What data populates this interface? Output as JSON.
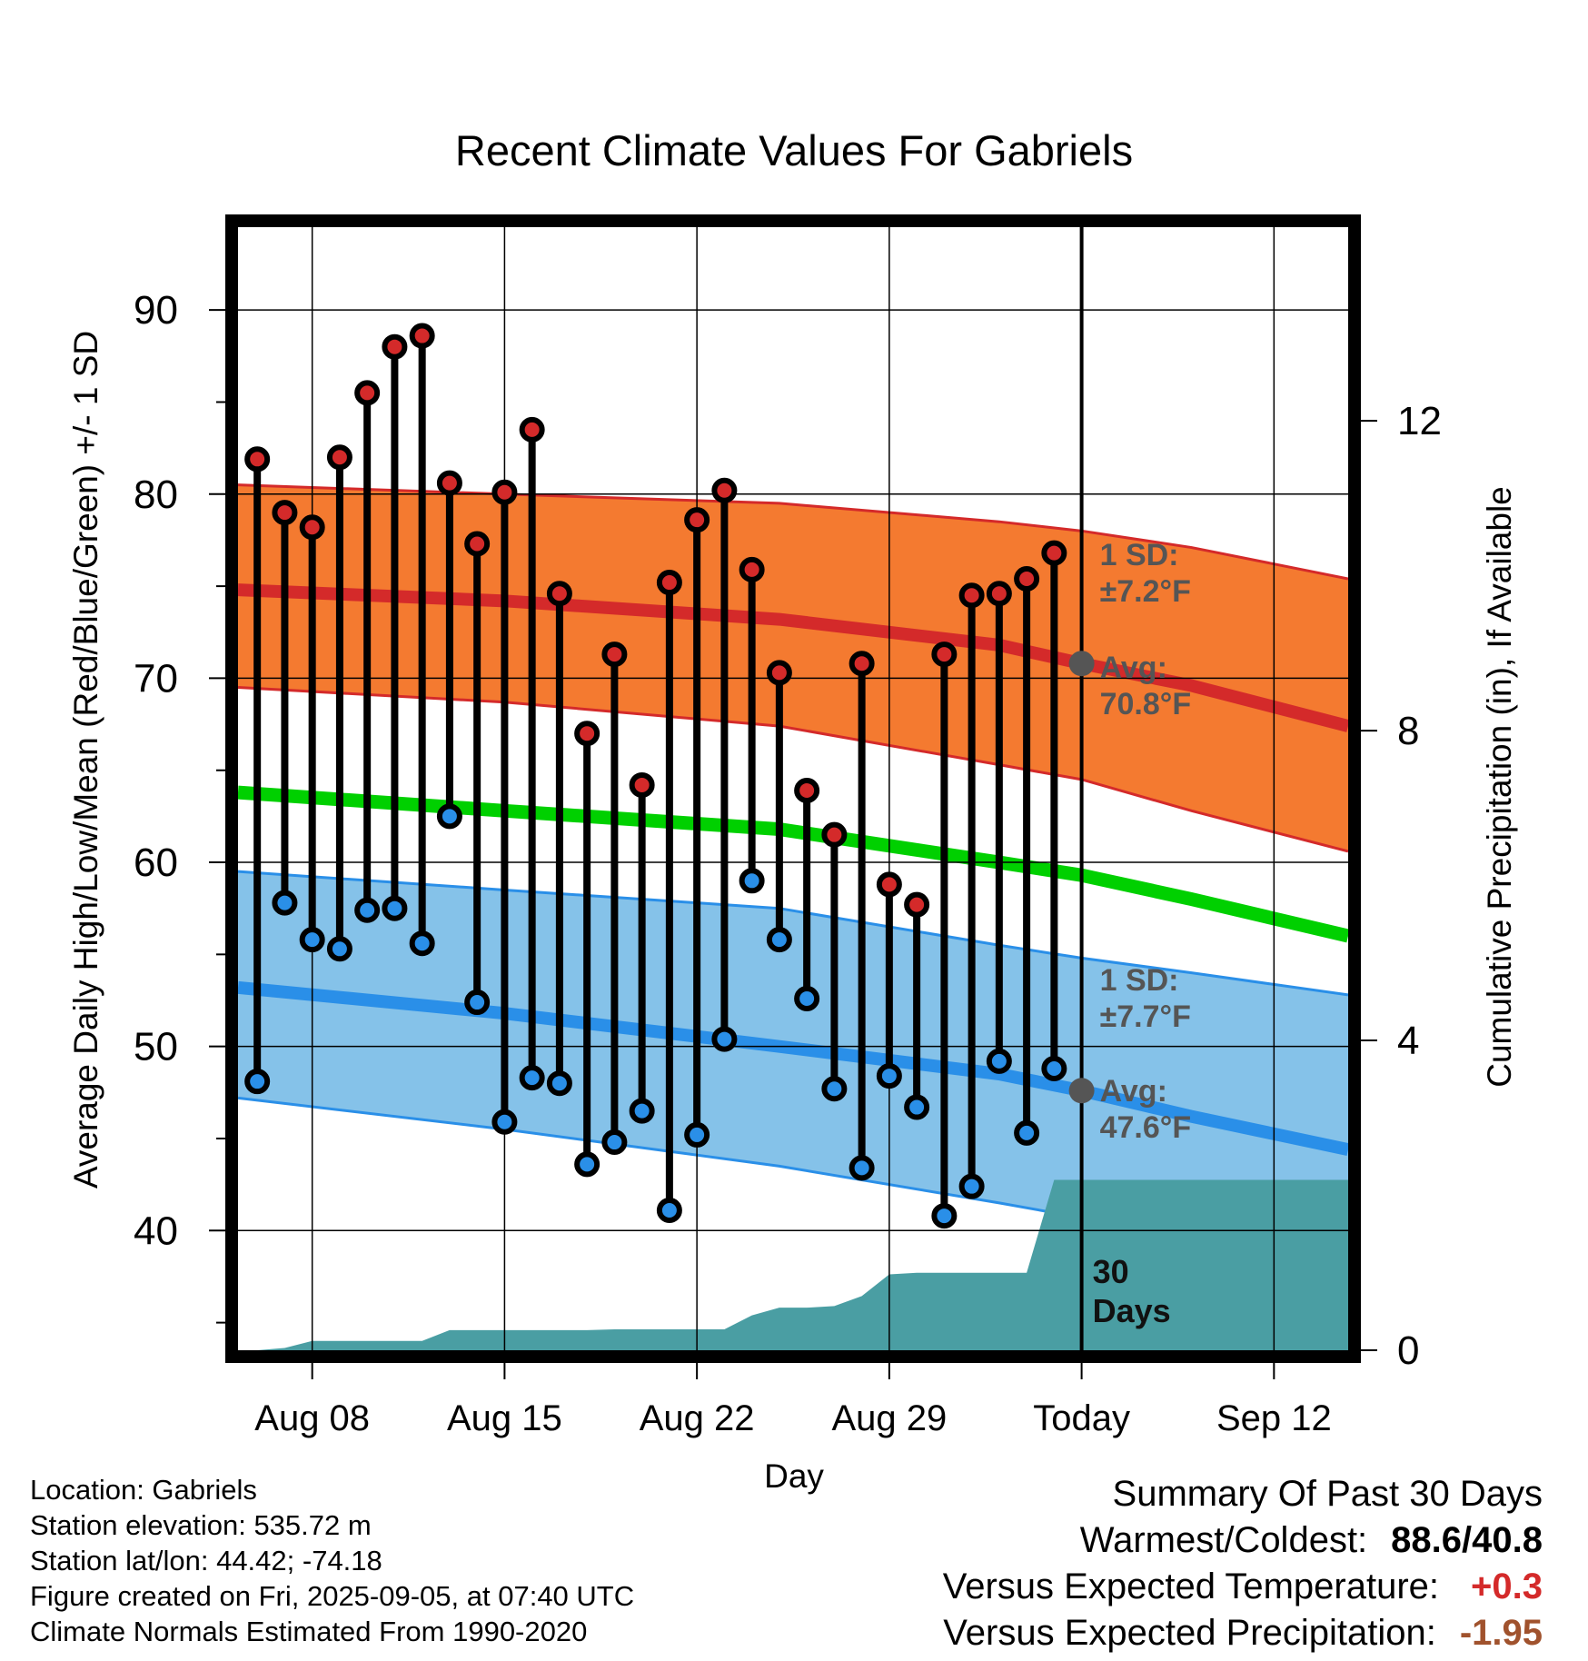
{
  "chart_data": {
    "type": "line",
    "title": "Recent Climate Values For Gabriels",
    "xlabel": "Day",
    "ylabel": "Average Daily High/Low/Mean (Red/Blue/Green) +/- 1 SD",
    "y2label": "Cumulative Precipitation (in), If Available",
    "ylim": [
      33.5,
      94.5
    ],
    "y2lim": [
      0,
      14.5
    ],
    "yticks": [
      "40",
      "50",
      "60",
      "70",
      "80",
      "90"
    ],
    "y2ticks": [
      "0",
      "4",
      "8",
      "12"
    ],
    "xticks": [
      "Aug 08",
      "Aug 15",
      "Aug 22",
      "Aug 29",
      "Today",
      "Sep 12"
    ],
    "x_tick_days": [
      8,
      15,
      22,
      29,
      36,
      43
    ],
    "xlim": [
      5.3,
      45.7
    ],
    "today_day": 36,
    "grid": true,
    "days": [
      6,
      7,
      8,
      9,
      10,
      11,
      12,
      13,
      14,
      15,
      16,
      17,
      18,
      19,
      20,
      21,
      22,
      23,
      24,
      25,
      26,
      27,
      28,
      29,
      30,
      31,
      32,
      33,
      34,
      35
    ],
    "series": [
      {
        "name": "High",
        "color": "#d42a2a",
        "values": [
          81.9,
          79.0,
          78.2,
          82.0,
          85.5,
          88.0,
          88.6,
          80.6,
          77.3,
          80.1,
          83.5,
          74.6,
          67.0,
          71.3,
          64.2,
          75.2,
          78.6,
          80.2,
          75.9,
          70.3,
          63.9,
          61.5,
          70.8,
          58.8,
          57.7,
          71.3,
          74.5,
          74.6,
          75.4,
          76.8
        ]
      },
      {
        "name": "Low",
        "color": "#2a8fe8",
        "values": [
          48.1,
          57.8,
          55.8,
          55.3,
          57.4,
          57.5,
          55.6,
          62.5,
          52.4,
          45.9,
          48.3,
          48.0,
          43.6,
          44.8,
          46.5,
          41.1,
          45.2,
          50.4,
          59.0,
          55.8,
          52.6,
          47.7,
          43.4,
          48.4,
          46.7,
          40.8,
          42.4,
          49.2,
          45.3,
          48.8
        ]
      }
    ],
    "normals": {
      "days": [
        5.3,
        15,
        25,
        33,
        36,
        40,
        45.7
      ],
      "high_avg": [
        74.8,
        74.2,
        73.2,
        71.8,
        70.8,
        69.6,
        67.4
      ],
      "high_upper": [
        80.5,
        80.0,
        79.5,
        78.5,
        78.0,
        77.1,
        75.4
      ],
      "high_lower": [
        69.5,
        68.7,
        67.4,
        65.3,
        64.5,
        62.8,
        60.6
      ],
      "mean_avg": [
        63.8,
        62.8,
        61.8,
        60.0,
        59.3,
        58.0,
        56.0
      ],
      "low_avg": [
        53.2,
        51.8,
        50.0,
        48.5,
        47.6,
        46.2,
        44.4
      ],
      "low_upper": [
        59.5,
        58.5,
        57.5,
        55.5,
        54.8,
        54.0,
        52.8
      ],
      "low_lower": [
        47.2,
        45.5,
        43.5,
        41.5,
        40.7,
        39.3,
        37.6
      ]
    },
    "precip": {
      "days": [
        5.3,
        6,
        7,
        8,
        9,
        10,
        11,
        12,
        13,
        14,
        15,
        16,
        17,
        18,
        19,
        20,
        21,
        22,
        23,
        24,
        25,
        26,
        27,
        28,
        29,
        30,
        31,
        32,
        33,
        34,
        35,
        36,
        45.7
      ],
      "values": [
        0,
        0,
        0.03,
        0.12,
        0.12,
        0.12,
        0.12,
        0.12,
        0.26,
        0.26,
        0.26,
        0.26,
        0.26,
        0.26,
        0.27,
        0.27,
        0.27,
        0.27,
        0.27,
        0.45,
        0.55,
        0.55,
        0.57,
        0.7,
        0.98,
        1.0,
        1.0,
        1.0,
        1.0,
        1.0,
        2.2,
        2.2,
        2.2
      ]
    },
    "annotations": {
      "high_sd": [
        "1 SD:",
        "±7.2°F"
      ],
      "high_avg": [
        "Avg:",
        "70.8°F"
      ],
      "low_sd": [
        "1 SD:",
        "±7.7°F"
      ],
      "low_avg": [
        "Avg:",
        "47.6°F"
      ],
      "precip_window": [
        "30",
        "Days"
      ]
    },
    "colors": {
      "high_band": "#f47a30",
      "high_line": "#d42a2a",
      "mean_line": "#00d000",
      "low_band": "#85c2e9",
      "low_line": "#2a8fe8",
      "precip_fill": "#4a9ea3",
      "marker_dot": "#555555"
    }
  },
  "footer": {
    "location": "Location: Gabriels",
    "elevation": "Station elevation: 535.72 m",
    "latlon": "Station lat/lon: 44.42; -74.18",
    "created": "Figure created on Fri, 2025-09-05, at 07:40 UTC",
    "normals": "Climate Normals Estimated From 1990-2020"
  },
  "summary": {
    "heading": "Summary Of Past 30 Days",
    "warmest_label": "Warmest/Coldest:",
    "warmest_value": "88.6/40.8",
    "temp_label": "Versus Expected Temperature:",
    "temp_value": "+0.3",
    "temp_color": "#d42a2a",
    "precip_label": "Versus Expected Precipitation:",
    "precip_value": "-1.95",
    "precip_color": "#a0522d"
  }
}
